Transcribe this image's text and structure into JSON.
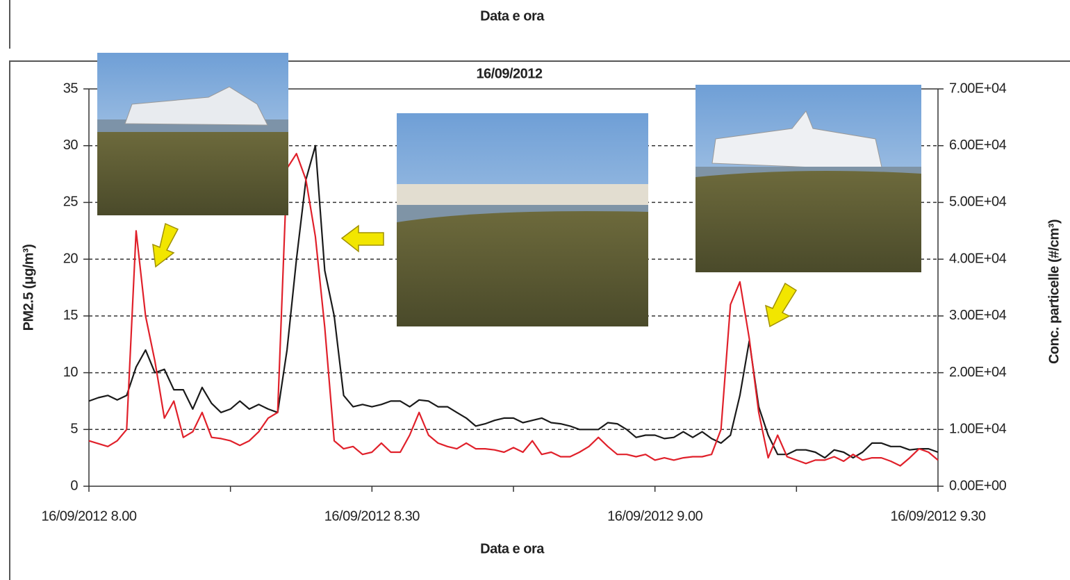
{
  "chart_data": {
    "type": "line",
    "header_text": "Data e ora",
    "title": "16/09/2012",
    "xlabel": "Data e ora",
    "ylabel": "PM2.5 (μg/m³)",
    "y2label": "Conc. particelle (#/cm³)",
    "categories": [
      "16/09/2012 8.00",
      null,
      null,
      null,
      null,
      null,
      null,
      null,
      null,
      null,
      null,
      null,
      null,
      null,
      null,
      null,
      null,
      null,
      null,
      null,
      null,
      null,
      null,
      null,
      null,
      null,
      null,
      null,
      null,
      null,
      "16/09/2012 8.30",
      null,
      null,
      null,
      null,
      null,
      null,
      null,
      null,
      null,
      null,
      null,
      null,
      null,
      null,
      null,
      null,
      null,
      null,
      null,
      null,
      null,
      null,
      null,
      null,
      null,
      null,
      null,
      null,
      null,
      "16/09/2012 9.00",
      null,
      null,
      null,
      null,
      null,
      null,
      null,
      null,
      null,
      null,
      null,
      null,
      null,
      null,
      null,
      null,
      null,
      null,
      null,
      null,
      null,
      null,
      null,
      null,
      null,
      null,
      null,
      null,
      null,
      "16/09/2012 9.30"
    ],
    "ylim": [
      0,
      35
    ],
    "yticks": [
      0,
      5,
      10,
      15,
      20,
      25,
      30,
      35
    ],
    "y2lim": [
      0,
      70000
    ],
    "y2ticks": [
      {
        "value": 0,
        "label": "0.00E+00"
      },
      {
        "value": 10000,
        "label": "1.00E+04"
      },
      {
        "value": 20000,
        "label": "2.00E+04"
      },
      {
        "value": 30000,
        "label": "3.00E+04"
      },
      {
        "value": 40000,
        "label": "4.00E+04"
      },
      {
        "value": 50000,
        "label": "5.00E+04"
      },
      {
        "value": 60000,
        "label": "6.00E+04"
      },
      {
        "value": 70000,
        "label": "7.00E+04"
      }
    ],
    "grid": true,
    "series": [
      {
        "color": "#1a1a1a",
        "axis": "y",
        "values": [
          7.5,
          7.8,
          8,
          7.6,
          8,
          10.5,
          12,
          10,
          10.3,
          8.5,
          8.5,
          6.8,
          8.7,
          7.3,
          6.5,
          6.8,
          7.5,
          6.8,
          7.2,
          6.8,
          6.5,
          12,
          20,
          27,
          30,
          19,
          15,
          8,
          7,
          7.2,
          7,
          7.2,
          7.5,
          7.5,
          7,
          7.6,
          7.5,
          7,
          7,
          6.5,
          6,
          5.3,
          5.5,
          5.8,
          6,
          6,
          5.6,
          5.8,
          6,
          5.6,
          5.5,
          5.3,
          5,
          5,
          5,
          5.6,
          5.5,
          5,
          4.3,
          4.5,
          4.5,
          4.2,
          4.3,
          4.8,
          4.3,
          4.8,
          4.2,
          3.8,
          4.5,
          8,
          12.8,
          7,
          4.5,
          2.8,
          2.8,
          3.2,
          3.2,
          3,
          2.5,
          3.2,
          3,
          2.5,
          3,
          3.8,
          3.8,
          3.5,
          3.5,
          3.2,
          3.3,
          3.3,
          3
        ]
      },
      {
        "color": "#e0202a",
        "axis": "y2",
        "values": [
          8000,
          7500,
          7000,
          8000,
          10000,
          45000,
          30000,
          22000,
          12000,
          15000,
          8600,
          9600,
          13000,
          8600,
          8400,
          8000,
          7200,
          8000,
          9600,
          12000,
          13000,
          56000,
          58600,
          54000,
          44000,
          28000,
          8000,
          6600,
          7000,
          5600,
          6000,
          7600,
          6000,
          6000,
          9000,
          13000,
          9000,
          7600,
          7000,
          6600,
          7600,
          6600,
          6600,
          6400,
          6000,
          6800,
          6000,
          8000,
          5600,
          6000,
          5200,
          5200,
          6000,
          7000,
          8600,
          7000,
          5600,
          5600,
          5200,
          5600,
          4600,
          5000,
          4600,
          5000,
          5200,
          5200,
          5600,
          10000,
          32000,
          36000,
          26000,
          13000,
          5000,
          9000,
          5200,
          4600,
          4000,
          4600,
          4600,
          5200,
          4400,
          5600,
          4600,
          5000,
          5000,
          4400,
          3600,
          5000,
          6600,
          6000,
          4600
        ]
      }
    ]
  }
}
